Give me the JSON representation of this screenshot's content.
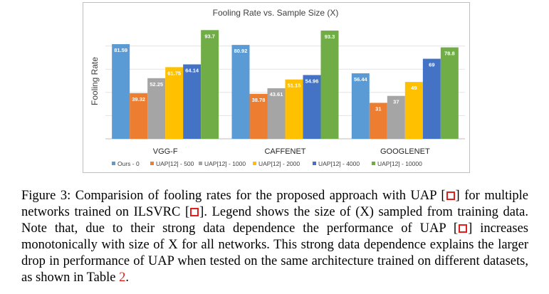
{
  "chart_data": {
    "type": "bar",
    "title": "Fooling Rate vs. Sample Size (X)",
    "xlabel": "",
    "ylabel": "Fooling Rate",
    "ylim": [
      0,
      100
    ],
    "grid": true,
    "legend_position": "bottom",
    "categories": [
      "VGG-F",
      "CAFFENET",
      "GOOGLENET"
    ],
    "series": [
      {
        "name": "Ours - 0",
        "color": "#5b9bd5",
        "values": [
          81.59,
          80.92,
          56.44
        ]
      },
      {
        "name": "UAP[12] - 500",
        "color": "#ed7d31",
        "values": [
          39.32,
          38.78,
          31
        ]
      },
      {
        "name": "UAP[12] - 1000",
        "color": "#a5a5a5",
        "values": [
          52.25,
          43.61,
          37
        ]
      },
      {
        "name": "UAP[12] - 2000",
        "color": "#ffc000",
        "values": [
          61.75,
          51.15,
          49
        ]
      },
      {
        "name": "UAP[12] - 4000",
        "color": "#4472c4",
        "values": [
          64.14,
          54.96,
          69
        ]
      },
      {
        "name": "UAP[12] - 10000",
        "color": "#70ad47",
        "values": [
          93.7,
          93.3,
          78.8
        ]
      }
    ],
    "data_labels": [
      [
        "81.59",
        "39.32",
        "52.25",
        "61.75",
        "64.14",
        "93.7"
      ],
      [
        "80.92",
        "38.78",
        "43.61",
        "51.15",
        "54.96",
        "93.3"
      ],
      [
        "56.44",
        "31",
        "37",
        "49",
        "69",
        "78.8"
      ]
    ]
  },
  "caption": {
    "p1": "Figure 3: Comparision of fooling rates for the proposed approach with UAP [",
    "p2": "] for multiple networks trained on ILSVRC [",
    "p3": "]. Legend shows the size of (X) sampled from training data. Note that, due to their strong data dependence the performance of UAP [",
    "p4": "] increases monotonically with size of X for all networks. This strong data dependence explains the larger drop in performance of UAP when tested on the same architecture trained on different datasets, as shown in Table ",
    "table_ref": "2",
    "p5": "."
  }
}
